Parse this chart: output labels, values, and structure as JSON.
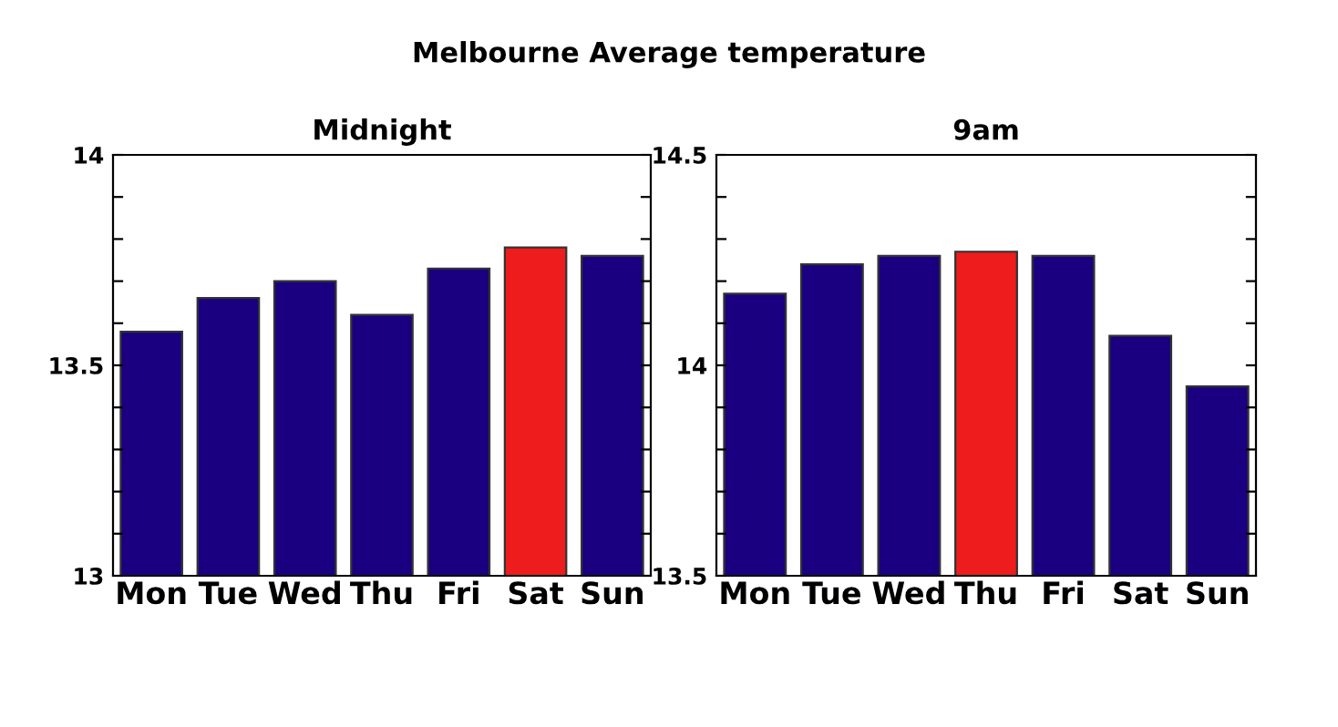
{
  "chart_data": [
    {
      "type": "bar",
      "title": "Midnight",
      "categories": [
        "Mon",
        "Tue",
        "Wed",
        "Thu",
        "Fri",
        "Sat",
        "Sun"
      ],
      "values": [
        13.58,
        13.66,
        13.7,
        13.62,
        13.73,
        13.78,
        13.76
      ],
      "colors": [
        "#1a0080",
        "#1a0080",
        "#1a0080",
        "#1a0080",
        "#1a0080",
        "#ee1c1c",
        "#1a0080"
      ],
      "ylim": [
        13,
        14
      ],
      "yticks": [
        13,
        {
          "value": 13.1,
          "label": null
        },
        {
          "value": 13.2,
          "label": null
        },
        {
          "value": 13.3,
          "label": null
        },
        {
          "value": 13.4,
          "label": null
        },
        13.5,
        {
          "value": 13.6,
          "label": null
        },
        {
          "value": 13.7,
          "label": null
        },
        {
          "value": 13.8,
          "label": null
        },
        {
          "value": 13.9,
          "label": null
        },
        14
      ],
      "grid": false,
      "legend": false
    },
    {
      "type": "bar",
      "title": "9am",
      "subtitle": "Melbourne Average temperature",
      "categories": [
        "Mon",
        "Tue",
        "Wed",
        "Thu",
        "Fri",
        "Sat",
        "Sun"
      ],
      "values": [
        14.17,
        14.24,
        14.26,
        14.27,
        14.26,
        14.07,
        13.95
      ],
      "colors": [
        "#1a0080",
        "#1a0080",
        "#1a0080",
        "#ee1c1c",
        "#1a0080",
        "#1a0080",
        "#1a0080"
      ],
      "ylim": [
        13.5,
        14.5
      ],
      "yticks": [
        13.5,
        {
          "value": 13.6,
          "label": null
        },
        {
          "value": 13.7,
          "label": null
        },
        {
          "value": 13.8,
          "label": null
        },
        {
          "value": 13.9,
          "label": null
        },
        14,
        {
          "value": 14.1,
          "label": null
        },
        {
          "value": 14.2,
          "label": null
        },
        {
          "value": 14.3,
          "label": null
        },
        {
          "value": 14.4,
          "label": null
        },
        14.5
      ],
      "grid": false,
      "legend": false
    }
  ]
}
